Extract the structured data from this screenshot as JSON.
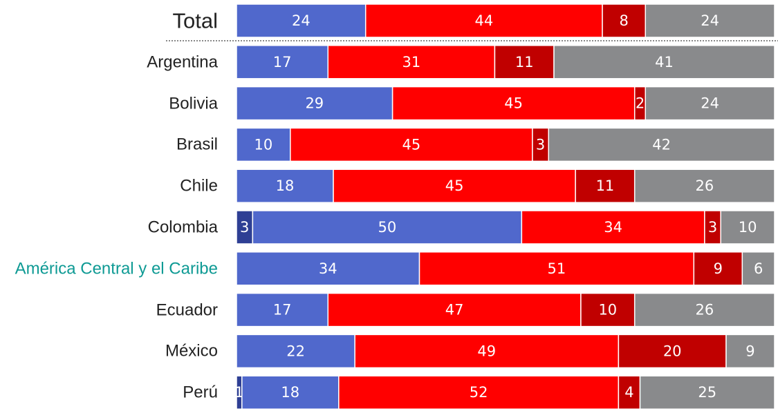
{
  "chart_data": {
    "type": "stacked-bar-horizontal",
    "categories": [
      "Total",
      "Argentina",
      "Bolivia",
      "Brasil",
      "Chile",
      "Colombia",
      "América Central y el Caribe",
      "Ecuador",
      "México",
      "Perú"
    ],
    "label_colors": [
      "#222222",
      "#222222",
      "#222222",
      "#222222",
      "#222222",
      "#222222",
      "#0e9a94",
      "#222222",
      "#222222",
      "#222222"
    ],
    "xlim": [
      0,
      100
    ],
    "series": [
      {
        "color": "#2e3f94",
        "values": [
          null,
          null,
          null,
          null,
          null,
          3,
          null,
          null,
          null,
          1
        ]
      },
      {
        "color": "#5068cc",
        "values": [
          24,
          17,
          29,
          10,
          18,
          50,
          34,
          17,
          22,
          18
        ]
      },
      {
        "color": "#ff0000",
        "values": [
          44,
          31,
          45,
          45,
          45,
          34,
          51,
          47,
          49,
          52
        ]
      },
      {
        "color": "#c00000",
        "values": [
          8,
          11,
          2,
          3,
          11,
          3,
          9,
          10,
          20,
          4
        ]
      },
      {
        "color": "#898a8c",
        "values": [
          24,
          41,
          24,
          42,
          26,
          10,
          6,
          26,
          9,
          25
        ]
      }
    ]
  }
}
